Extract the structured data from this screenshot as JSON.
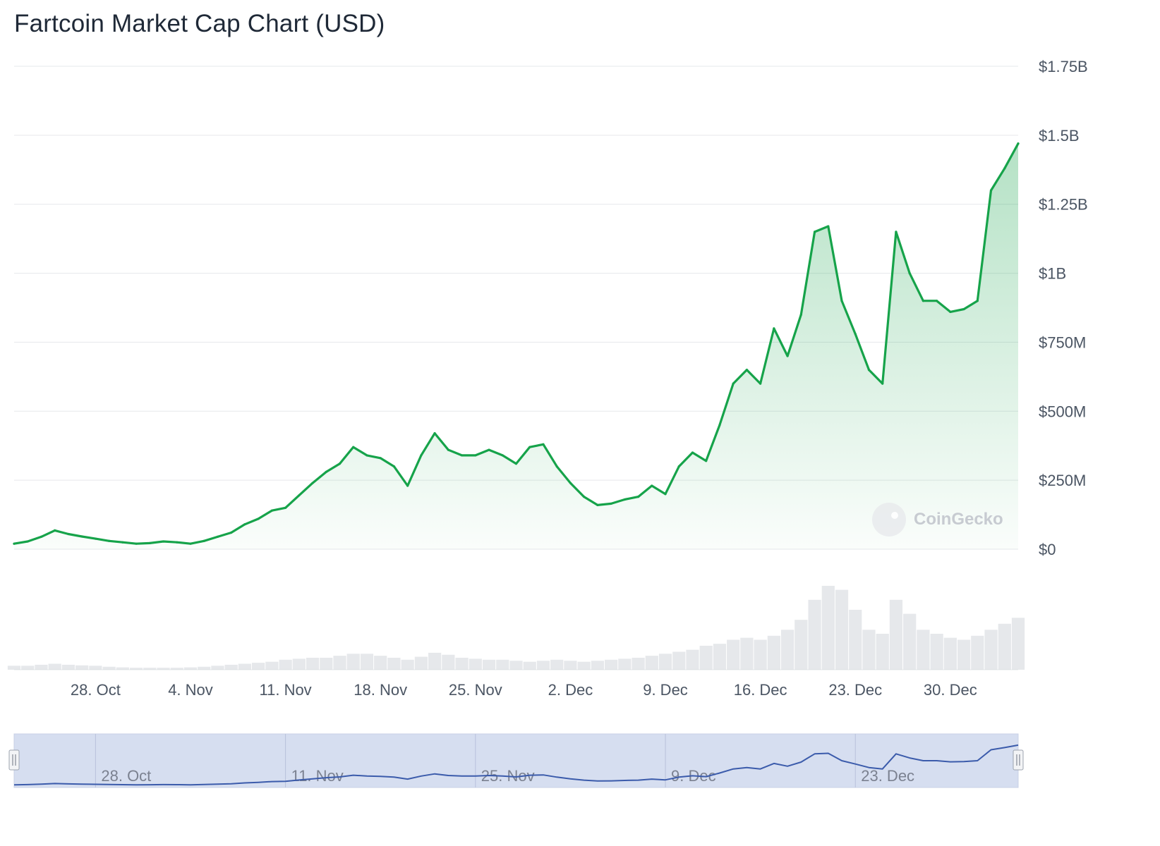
{
  "chart_data": {
    "type": "area",
    "title": "Fartcoin Market Cap Chart (USD)",
    "currency": "USD",
    "y_unit": "USD",
    "ylim": [
      0,
      1750000000
    ],
    "y_ticks": [
      {
        "value": 0,
        "label": "$0"
      },
      {
        "value": 250000000,
        "label": "$250M"
      },
      {
        "value": 500000000,
        "label": "$500M"
      },
      {
        "value": 750000000,
        "label": "$750M"
      },
      {
        "value": 1000000000,
        "label": "$1B"
      },
      {
        "value": 1250000000,
        "label": "$1.25B"
      },
      {
        "value": 1500000000,
        "label": "$1.5B"
      },
      {
        "value": 1750000000,
        "label": "$1.75B"
      }
    ],
    "x_ticks": [
      {
        "date": "2024-10-28",
        "label": "28. Oct"
      },
      {
        "date": "2024-11-04",
        "label": "4. Nov"
      },
      {
        "date": "2024-11-11",
        "label": "11. Nov"
      },
      {
        "date": "2024-11-18",
        "label": "18. Nov"
      },
      {
        "date": "2024-11-25",
        "label": "25. Nov"
      },
      {
        "date": "2024-12-02",
        "label": "2. Dec"
      },
      {
        "date": "2024-12-09",
        "label": "9. Dec"
      },
      {
        "date": "2024-12-16",
        "label": "16. Dec"
      },
      {
        "date": "2024-12-23",
        "label": "23. Dec"
      },
      {
        "date": "2024-12-30",
        "label": "30. Dec"
      }
    ],
    "navigator_ticks": [
      {
        "date": "2024-10-28",
        "label": "28. Oct"
      },
      {
        "date": "2024-11-11",
        "label": "11. Nov"
      },
      {
        "date": "2024-11-25",
        "label": "25. Nov"
      },
      {
        "date": "2024-12-09",
        "label": "9. Dec"
      },
      {
        "date": "2024-12-23",
        "label": "23. Dec"
      }
    ],
    "grid": true,
    "legend": "none",
    "line_color": "#16a34a",
    "area_color": "#16a34a",
    "volume_color": "#d1d5db",
    "navigator_fill": "#d6def0",
    "navigator_line": "#3b5bab",
    "watermark": "CoinGecko",
    "series": [
      {
        "type": "market_cap",
        "x": [
          "2024-10-22",
          "2024-10-23",
          "2024-10-24",
          "2024-10-25",
          "2024-10-26",
          "2024-10-27",
          "2024-10-28",
          "2024-10-29",
          "2024-10-30",
          "2024-10-31",
          "2024-11-01",
          "2024-11-02",
          "2024-11-03",
          "2024-11-04",
          "2024-11-05",
          "2024-11-06",
          "2024-11-07",
          "2024-11-08",
          "2024-11-09",
          "2024-11-10",
          "2024-11-11",
          "2024-11-12",
          "2024-11-13",
          "2024-11-14",
          "2024-11-15",
          "2024-11-16",
          "2024-11-17",
          "2024-11-18",
          "2024-11-19",
          "2024-11-20",
          "2024-11-21",
          "2024-11-22",
          "2024-11-23",
          "2024-11-24",
          "2024-11-25",
          "2024-11-26",
          "2024-11-27",
          "2024-11-28",
          "2024-11-29",
          "2024-11-30",
          "2024-12-01",
          "2024-12-02",
          "2024-12-03",
          "2024-12-04",
          "2024-12-05",
          "2024-12-06",
          "2024-12-07",
          "2024-12-08",
          "2024-12-09",
          "2024-12-10",
          "2024-12-11",
          "2024-12-12",
          "2024-12-13",
          "2024-12-14",
          "2024-12-15",
          "2024-12-16",
          "2024-12-17",
          "2024-12-18",
          "2024-12-19",
          "2024-12-20",
          "2024-12-21",
          "2024-12-22",
          "2024-12-23",
          "2024-12-24",
          "2024-12-25",
          "2024-12-26",
          "2024-12-27",
          "2024-12-28",
          "2024-12-29",
          "2024-12-30",
          "2024-12-31",
          "2025-01-01",
          "2025-01-02",
          "2025-01-03",
          "2025-01-04"
        ],
        "values": [
          20000000,
          28000000,
          45000000,
          68000000,
          55000000,
          46000000,
          38000000,
          30000000,
          25000000,
          20000000,
          22000000,
          28000000,
          25000000,
          20000000,
          30000000,
          45000000,
          60000000,
          90000000,
          110000000,
          140000000,
          150000000,
          195000000,
          240000000,
          280000000,
          310000000,
          370000000,
          340000000,
          330000000,
          300000000,
          230000000,
          340000000,
          420000000,
          360000000,
          340000000,
          340000000,
          360000000,
          340000000,
          310000000,
          370000000,
          380000000,
          300000000,
          240000000,
          190000000,
          160000000,
          165000000,
          180000000,
          190000000,
          230000000,
          200000000,
          300000000,
          350000000,
          320000000,
          450000000,
          600000000,
          650000000,
          600000000,
          800000000,
          700000000,
          850000000,
          1150000000,
          1170000000,
          900000000,
          780000000,
          650000000,
          600000000,
          1150000000,
          1000000000,
          900000000,
          900000000,
          860000000,
          870000000,
          900000000,
          1300000000,
          1380000000,
          1470000000
        ]
      },
      {
        "type": "volume",
        "values": [
          20000000,
          20000000,
          25000000,
          30000000,
          25000000,
          22000000,
          20000000,
          15000000,
          12000000,
          10000000,
          10000000,
          10000000,
          10000000,
          12000000,
          15000000,
          20000000,
          25000000,
          30000000,
          35000000,
          40000000,
          50000000,
          55000000,
          60000000,
          60000000,
          70000000,
          80000000,
          80000000,
          70000000,
          60000000,
          50000000,
          65000000,
          85000000,
          75000000,
          60000000,
          55000000,
          50000000,
          50000000,
          45000000,
          40000000,
          45000000,
          50000000,
          45000000,
          40000000,
          45000000,
          50000000,
          55000000,
          60000000,
          70000000,
          80000000,
          90000000,
          100000000,
          120000000,
          130000000,
          150000000,
          160000000,
          150000000,
          170000000,
          200000000,
          250000000,
          350000000,
          420000000,
          400000000,
          300000000,
          200000000,
          180000000,
          350000000,
          280000000,
          200000000,
          180000000,
          160000000,
          150000000,
          170000000,
          200000000,
          230000000,
          260000000
        ]
      }
    ]
  }
}
